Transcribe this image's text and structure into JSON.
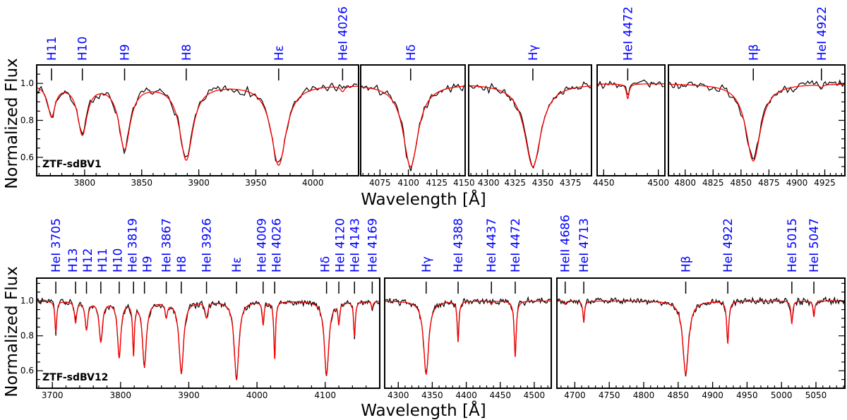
{
  "chart_data": {
    "type": "line",
    "xlabel": "Wavelength [Å]",
    "ylabel": "Normalized Flux",
    "colors": {
      "observed": "#000000",
      "model": "#ff0000",
      "line_labels": "#0000ff"
    },
    "rows": [
      {
        "star": "ZTF-sdBV1",
        "ylim": [
          0.5,
          1.1
        ],
        "yticks": [
          0.6,
          0.8,
          1.0
        ],
        "ytick_labels": [
          "0.6",
          "0.8",
          "1.0"
        ],
        "panels": [
          {
            "xlim": [
              3758,
              4040
            ],
            "xticks": [
              3800,
              3850,
              3900,
              3950,
              4000
            ],
            "xtick_labels": [
              "3800",
              "3850",
              "3900",
              "3950",
              "4000"
            ],
            "minor": 10
          },
          {
            "xlim": [
              4058,
              4150
            ],
            "xticks": [
              4075,
              4100,
              4125,
              4150
            ],
            "xtick_labels": [
              "4075",
              "4100",
              "4125",
              "4150"
            ],
            "minor": 5
          },
          {
            "xlim": [
              4283,
              4394
            ],
            "xticks": [
              4300,
              4325,
              4350,
              4375
            ],
            "xtick_labels": [
              "4300",
              "4325",
              "4350",
              "4375"
            ],
            "minor": 5
          },
          {
            "xlim": [
              4444,
              4506
            ],
            "xticks": [
              4450,
              4500
            ],
            "xtick_labels": [
              "4450",
              "4500"
            ],
            "minor": 10
          },
          {
            "xlim": [
              4785,
              4943
            ],
            "xticks": [
              4800,
              4825,
              4850,
              4875,
              4900,
              4925
            ],
            "xtick_labels": [
              "4800",
              "4825",
              "4850",
              "4875",
              "4900",
              "4925"
            ],
            "minor": 5
          }
        ],
        "lines": [
          {
            "label": "H11",
            "wavelength": 3771,
            "min_flux": 0.83,
            "width": 4
          },
          {
            "label": "H10",
            "wavelength": 3798,
            "min_flux": 0.73,
            "width": 5
          },
          {
            "label": "H9",
            "wavelength": 3835,
            "min_flux": 0.65,
            "width": 6
          },
          {
            "label": "H8",
            "wavelength": 3889,
            "min_flux": 0.59,
            "width": 7
          },
          {
            "label": "Hε",
            "wavelength": 3970,
            "min_flux": 0.56,
            "width": 8
          },
          {
            "label": "HeI 4026",
            "wavelength": 4026,
            "min_flux": 0.97,
            "width": 2
          },
          {
            "label": "Hδ",
            "wavelength": 4102,
            "min_flux": 0.55,
            "width": 8
          },
          {
            "label": "Hγ",
            "wavelength": 4341,
            "min_flux": 0.55,
            "width": 9
          },
          {
            "label": "HeI 4472",
            "wavelength": 4472,
            "min_flux": 0.92,
            "width": 1.5
          },
          {
            "label": "Hβ",
            "wavelength": 4861,
            "min_flux": 0.58,
            "width": 8
          },
          {
            "label": "HeI 4922",
            "wavelength": 4922,
            "min_flux": 0.985,
            "width": 2
          }
        ]
      },
      {
        "star": "ZTF-sdBV12",
        "ylim": [
          0.5,
          1.13
        ],
        "yticks": [
          0.6,
          0.8,
          1.0
        ],
        "ytick_labels": [
          "0.6",
          "0.8",
          "1.0"
        ],
        "panels": [
          {
            "xlim": [
              3677,
              4180
            ],
            "xticks": [
              3700,
              3800,
              3900,
              4000,
              4100
            ],
            "xtick_labels": [
              "3700",
              "3800",
              "3900",
              "4000",
              "4100"
            ],
            "minor": 20
          },
          {
            "xlim": [
              4280,
              4525
            ],
            "xticks": [
              4300,
              4350,
              4400,
              4450,
              4500
            ],
            "xtick_labels": [
              "4300",
              "4350",
              "4400",
              "4450",
              "4500"
            ],
            "minor": 10
          },
          {
            "xlim": [
              4674,
              5092
            ],
            "xticks": [
              4700,
              4750,
              4800,
              4850,
              4900,
              4950,
              5000,
              5050
            ],
            "xtick_labels": [
              "4700",
              "4750",
              "4800",
              "4850",
              "4900",
              "4950",
              "5000",
              "5050"
            ],
            "minor": 10
          }
        ],
        "lines": [
          {
            "label": "HeI 3705",
            "wavelength": 3705,
            "min_flux": 0.82,
            "width": 1.5
          },
          {
            "label": "H13",
            "wavelength": 3734,
            "min_flux": 0.88,
            "width": 2
          },
          {
            "label": "H12",
            "wavelength": 3750,
            "min_flux": 0.84,
            "width": 2.5
          },
          {
            "label": "H11",
            "wavelength": 3771,
            "min_flux": 0.77,
            "width": 3
          },
          {
            "label": "H10",
            "wavelength": 3798,
            "min_flux": 0.68,
            "width": 3
          },
          {
            "label": "HeI 3819",
            "wavelength": 3819,
            "min_flux": 0.7,
            "width": 1.5
          },
          {
            "label": "H9",
            "wavelength": 3835,
            "min_flux": 0.63,
            "width": 3.5
          },
          {
            "label": "HeI 3867",
            "wavelength": 3867,
            "min_flux": 0.92,
            "width": 2
          },
          {
            "label": "H8",
            "wavelength": 3889,
            "min_flux": 0.59,
            "width": 4
          },
          {
            "label": "HeI 3926",
            "wavelength": 3926,
            "min_flux": 0.91,
            "width": 2.5
          },
          {
            "label": "Hε",
            "wavelength": 3970,
            "min_flux": 0.55,
            "width": 4
          },
          {
            "label": "HeI 4009",
            "wavelength": 4009,
            "min_flux": 0.87,
            "width": 1.5
          },
          {
            "label": "HeI 4026",
            "wavelength": 4026,
            "min_flux": 0.67,
            "width": 1.5
          },
          {
            "label": "Hδ",
            "wavelength": 4102,
            "min_flux": 0.58,
            "width": 4
          },
          {
            "label": "HeI 4120",
            "wavelength": 4120,
            "min_flux": 0.88,
            "width": 1.5
          },
          {
            "label": "HeI 4143",
            "wavelength": 4143,
            "min_flux": 0.8,
            "width": 1.5
          },
          {
            "label": "HeI 4169",
            "wavelength": 4169,
            "min_flux": 0.96,
            "width": 1.5
          },
          {
            "label": "Hγ",
            "wavelength": 4341,
            "min_flux": 0.58,
            "width": 4.5
          },
          {
            "label": "HeI 4388",
            "wavelength": 4388,
            "min_flux": 0.77,
            "width": 1.5
          },
          {
            "label": "HeI 4437",
            "wavelength": 4437,
            "min_flux": 0.98,
            "width": 1.5
          },
          {
            "label": "HeI 4472",
            "wavelength": 4472,
            "min_flux": 0.68,
            "width": 1.8
          },
          {
            "label": "HeII 4686",
            "wavelength": 4686,
            "min_flux": 0.98,
            "width": 1.5
          },
          {
            "label": "HeI 4713",
            "wavelength": 4713,
            "min_flux": 0.88,
            "width": 1.5
          },
          {
            "label": "Hβ",
            "wavelength": 4861,
            "min_flux": 0.58,
            "width": 5
          },
          {
            "label": "HeI 4922",
            "wavelength": 4922,
            "min_flux": 0.76,
            "width": 1.8
          },
          {
            "label": "HeI 5015",
            "wavelength": 5015,
            "min_flux": 0.87,
            "width": 1.5
          },
          {
            "label": "HeI 5047",
            "wavelength": 5047,
            "min_flux": 0.91,
            "width": 1.5
          }
        ]
      }
    ]
  }
}
